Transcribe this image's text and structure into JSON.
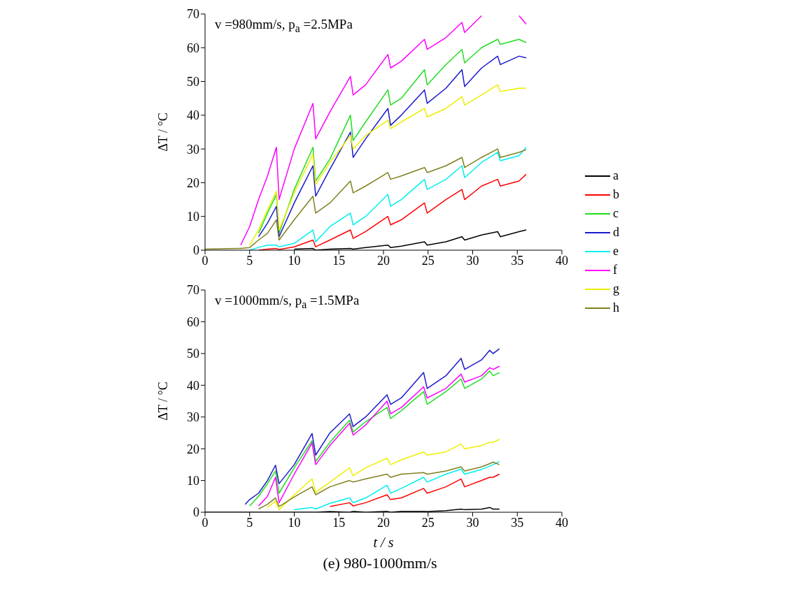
{
  "chart_data": [
    {
      "type": "line",
      "ylabel": "ΔT / °C",
      "annotations": [
        "v =980mm/s, p$_{a}$ =2.5MPa"
      ],
      "legend": "right",
      "marker": "none",
      "line_style": "solid",
      "xlim": [
        0,
        40
      ],
      "xticks": [
        0,
        5,
        10,
        15,
        20,
        25,
        30,
        35,
        40
      ],
      "ylim": [
        0,
        70
      ],
      "yticks": [
        0,
        10,
        20,
        30,
        40,
        50,
        60,
        70
      ],
      "x": [
        0,
        3.5,
        4,
        5,
        6,
        7,
        8,
        8.3,
        10,
        12.1,
        12.4,
        14,
        16.3,
        16.6,
        18,
        20.5,
        20.8,
        22,
        24.6,
        24.9,
        27,
        28.8,
        29.1,
        31,
        32.8,
        33.1,
        35.2,
        36
      ],
      "series": [
        {
          "name": "a",
          "color": "#000000",
          "values": [
            null,
            null,
            null,
            null,
            null,
            null,
            null,
            null,
            0.3,
            0.5,
            0,
            0.3,
            0.5,
            0.3,
            0.8,
            1.5,
            0.8,
            1.2,
            2.5,
            1.5,
            2.5,
            4,
            3,
            4.5,
            5.5,
            4,
            5.5,
            6
          ]
        },
        {
          "name": "b",
          "color": "#ff0000",
          "values": [
            null,
            null,
            null,
            null,
            0,
            0.3,
            0.5,
            0.2,
            1,
            3,
            1,
            3,
            6,
            3.5,
            5.5,
            10,
            7.5,
            9,
            14,
            11,
            15,
            18,
            15,
            19,
            21,
            19,
            20.5,
            22.5
          ]
        },
        {
          "name": "c",
          "color": "#22dd22",
          "values": [
            null,
            null,
            null,
            null,
            5,
            11,
            16.5,
            5,
            18,
            30.5,
            20.5,
            27,
            40,
            32.5,
            38,
            47.5,
            43,
            45,
            53.5,
            49,
            55,
            59.5,
            55.5,
            60,
            62.5,
            61,
            62.5,
            61.5
          ]
        },
        {
          "name": "d",
          "color": "#1a1acc",
          "values": [
            null,
            null,
            null,
            null,
            4,
            8,
            13,
            4,
            14,
            25,
            16,
            24,
            35,
            27.5,
            33,
            42,
            37,
            40,
            47.5,
            43.5,
            48,
            53.5,
            48.5,
            54,
            57.5,
            55,
            57.5,
            57
          ]
        },
        {
          "name": "e",
          "color": "#00eeee",
          "values": [
            null,
            null,
            null,
            0,
            0.8,
            1.5,
            1.5,
            1,
            2,
            6,
            2.5,
            7,
            11,
            7.5,
            10,
            16.5,
            13,
            15,
            21,
            18,
            21,
            25,
            21.5,
            26,
            29,
            26.5,
            28,
            30.5
          ]
        },
        {
          "name": "f",
          "color": "#ff00ff",
          "values": [
            null,
            null,
            1.5,
            7,
            15,
            22,
            30.5,
            15,
            30,
            43.5,
            33,
            41,
            51.5,
            46,
            49,
            58,
            54,
            56,
            62.5,
            59.5,
            63,
            67.5,
            64.5,
            69.5,
            null,
            null,
            69.5,
            67
          ]
        },
        {
          "name": "g",
          "color": "#eeee00",
          "values": [
            null,
            null,
            null,
            1.5,
            6,
            12,
            17.5,
            6,
            17,
            28.5,
            19.5,
            26,
            34,
            30,
            34,
            38.5,
            36,
            38,
            42,
            39.5,
            42,
            45.5,
            43,
            46,
            49,
            47,
            48,
            48
          ]
        },
        {
          "name": "h",
          "color": "#808020",
          "values": [
            0.3,
            0.5,
            0.5,
            0.8,
            3,
            5,
            9,
            3,
            9,
            16,
            11,
            14,
            20.5,
            17,
            19,
            23,
            21,
            22,
            24.5,
            23,
            25,
            27.5,
            24.5,
            27.5,
            30,
            27.5,
            29,
            29.8
          ]
        }
      ]
    },
    {
      "type": "line",
      "xlabel": "t / s",
      "ylabel": "ΔT / °C",
      "annotations": [
        "v =1000mm/s, p$_{a}$ =1.5MPa",
        "(e) 980-1000mm/s"
      ],
      "marker": "none",
      "line_style": "solid",
      "xlim": [
        0,
        40
      ],
      "xticks": [
        0,
        5,
        10,
        15,
        20,
        25,
        30,
        35,
        40
      ],
      "ylim": [
        0,
        70
      ],
      "yticks": [
        0,
        10,
        20,
        30,
        40,
        50,
        60,
        70
      ],
      "x": [
        0,
        4,
        4.5,
        5,
        6,
        7,
        7.9,
        8.3,
        10,
        12,
        12.4,
        14,
        16.2,
        16.6,
        18,
        20.4,
        20.8,
        22,
        24.5,
        24.9,
        27,
        28.7,
        29.1,
        31,
        31.9,
        32.3,
        33
      ],
      "series": [
        {
          "color": "#000000",
          "values": [
            0,
            0,
            0,
            0,
            0,
            0,
            0,
            0,
            0,
            0,
            0,
            0.2,
            0,
            0.3,
            0,
            0.3,
            0,
            0.3,
            0.3,
            0.2,
            0.5,
            1,
            0.8,
            1,
            1.5,
            1,
            1
          ]
        },
        {
          "color": "#ff0000",
          "values": [
            null,
            null,
            null,
            null,
            null,
            null,
            null,
            null,
            null,
            null,
            null,
            1.8,
            3,
            2,
            3,
            5.5,
            4,
            4.5,
            7.5,
            6,
            8,
            10.5,
            8,
            10,
            11,
            11,
            12
          ]
        },
        {
          "color": "#22dd22",
          "values": [
            null,
            null,
            null,
            2,
            5,
            9,
            13,
            6,
            14,
            22.5,
            16,
            22,
            29,
            25.3,
            28.5,
            33,
            29.5,
            32,
            38,
            34,
            38,
            42,
            39,
            42,
            44.5,
            43,
            44
          ]
        },
        {
          "color": "#1a1acc",
          "values": [
            null,
            null,
            2.5,
            4,
            6,
            10,
            14.8,
            9,
            15,
            24.8,
            18,
            25,
            31,
            27,
            30,
            37,
            34,
            36,
            44,
            39,
            43,
            48.5,
            45,
            48,
            51,
            50,
            51.5
          ]
        },
        {
          "color": "#00eeee",
          "values": [
            null,
            null,
            null,
            null,
            null,
            null,
            null,
            null,
            0.8,
            1.5,
            1,
            2.8,
            4.5,
            3,
            4.5,
            8.5,
            6,
            7.5,
            11,
            9.5,
            12,
            13.6,
            12,
            13.5,
            14.5,
            15,
            16
          ]
        },
        {
          "color": "#ff00ff",
          "values": [
            null,
            null,
            null,
            null,
            2,
            5,
            11,
            3,
            12,
            21.8,
            15,
            21,
            28,
            24.3,
            27.5,
            35,
            31,
            33,
            39.5,
            36,
            39,
            43.5,
            41,
            43,
            45.5,
            45,
            46
          ]
        },
        {
          "color": "#eeee00",
          "values": [
            null,
            null,
            null,
            null,
            null,
            1.5,
            3.5,
            0.8,
            5.5,
            10.5,
            6.3,
            9.5,
            14,
            11.5,
            14,
            17,
            15,
            16.5,
            19,
            18,
            19,
            21.5,
            20,
            21,
            22,
            22,
            23
          ]
        },
        {
          "color": "#808020",
          "values": [
            null,
            null,
            null,
            null,
            1,
            2.5,
            4.5,
            1.8,
            4.8,
            8,
            5.5,
            8,
            10,
            9.5,
            10.5,
            12,
            11,
            12,
            12.5,
            12,
            13,
            14.3,
            13,
            14.3,
            15.3,
            15.8,
            15
          ]
        }
      ]
    }
  ]
}
